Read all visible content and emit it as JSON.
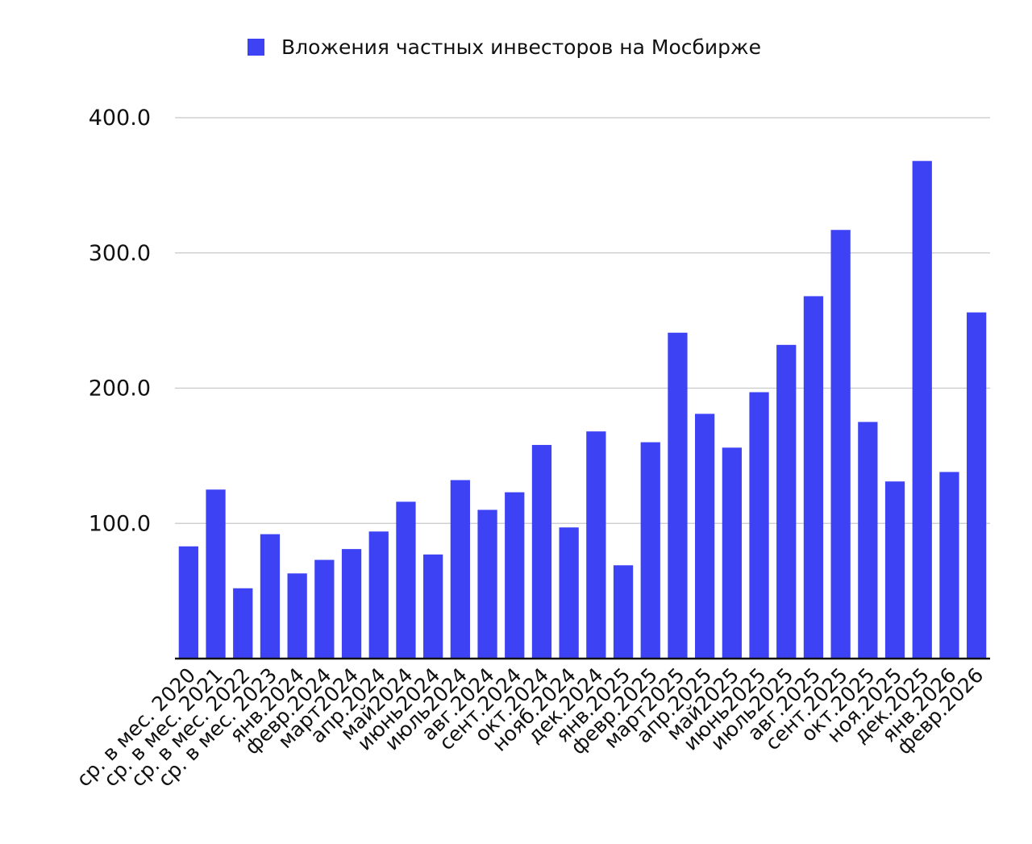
{
  "colors": {
    "bar": "#3d43f5",
    "grid": "#c8c8c8",
    "axis": "#111111",
    "text": "#111111"
  },
  "legend": {
    "label": "Вложения частных инвесторов на Мосбирже",
    "position": "top-center"
  },
  "chart_data": {
    "type": "bar",
    "title": "",
    "xlabel": "",
    "ylabel": "",
    "ylim": [
      0,
      400
    ],
    "yticks": [
      100,
      200,
      300,
      400
    ],
    "ytick_labels": [
      "100.0",
      "200.0",
      "300.0",
      "400.0"
    ],
    "grid": true,
    "categories": [
      "ср. в мес. 2020",
      "ср. в мес. 2021",
      "ср. в мес. 2022",
      "ср. в мес. 2023",
      "янв.2024",
      "февр.2024",
      "март2024",
      "апр.2024",
      "май2024",
      "июнь2024",
      "июль2024",
      "авг.2024",
      "сент.2024",
      "окт.2024",
      "нояб.2024",
      "дек.2024",
      "янв.2025",
      "февр.2025",
      "март2025",
      "апр.2025",
      "май2025",
      "июнь2025",
      "июль2025",
      "авг.2025",
      "сент.2025",
      "окт.2025",
      "ноя.2025",
      "дек.2025",
      "янв.2026",
      "февр.2026"
    ],
    "series": [
      {
        "name": "Вложения частных инвесторов на Мосбирже",
        "values": [
          83,
          125,
          52,
          92,
          63,
          73,
          81,
          94,
          116,
          77,
          132,
          110,
          123,
          158,
          97,
          168,
          69,
          160,
          241,
          181,
          156,
          197,
          232,
          268,
          317,
          175,
          131,
          368,
          138,
          256
        ]
      }
    ]
  }
}
